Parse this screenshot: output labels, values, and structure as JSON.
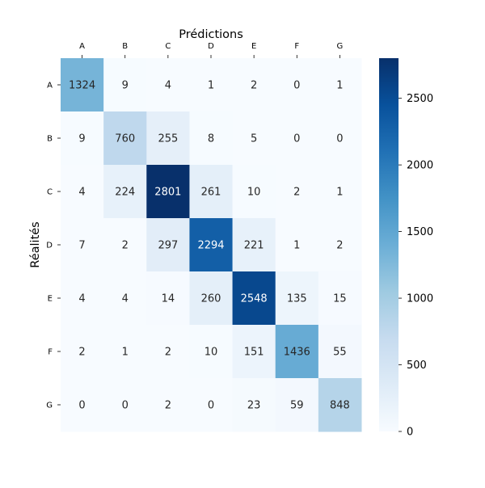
{
  "chart_data": {
    "type": "heatmap",
    "title": "",
    "xlabel": "Prédictions",
    "ylabel": "Réalités",
    "x_axis_position": "top",
    "categories_x": [
      "A",
      "B",
      "C",
      "D",
      "E",
      "F",
      "G"
    ],
    "categories_y": [
      "A",
      "B",
      "C",
      "D",
      "E",
      "F",
      "G"
    ],
    "values": [
      [
        1324,
        9,
        4,
        1,
        2,
        0,
        1
      ],
      [
        9,
        760,
        255,
        8,
        5,
        0,
        0
      ],
      [
        4,
        224,
        2801,
        261,
        10,
        2,
        1
      ],
      [
        7,
        2,
        297,
        2294,
        221,
        1,
        2
      ],
      [
        4,
        4,
        14,
        260,
        2548,
        135,
        15
      ],
      [
        2,
        1,
        2,
        10,
        151,
        1436,
        55
      ],
      [
        0,
        0,
        2,
        0,
        23,
        59,
        848
      ]
    ],
    "colormap": "Blues",
    "vmin": 0,
    "vmax": 2801,
    "colorbar": {
      "position": "right",
      "ticks": [
        0,
        500,
        1000,
        1500,
        2000,
        2500
      ]
    },
    "annotations": true,
    "grid": false
  }
}
